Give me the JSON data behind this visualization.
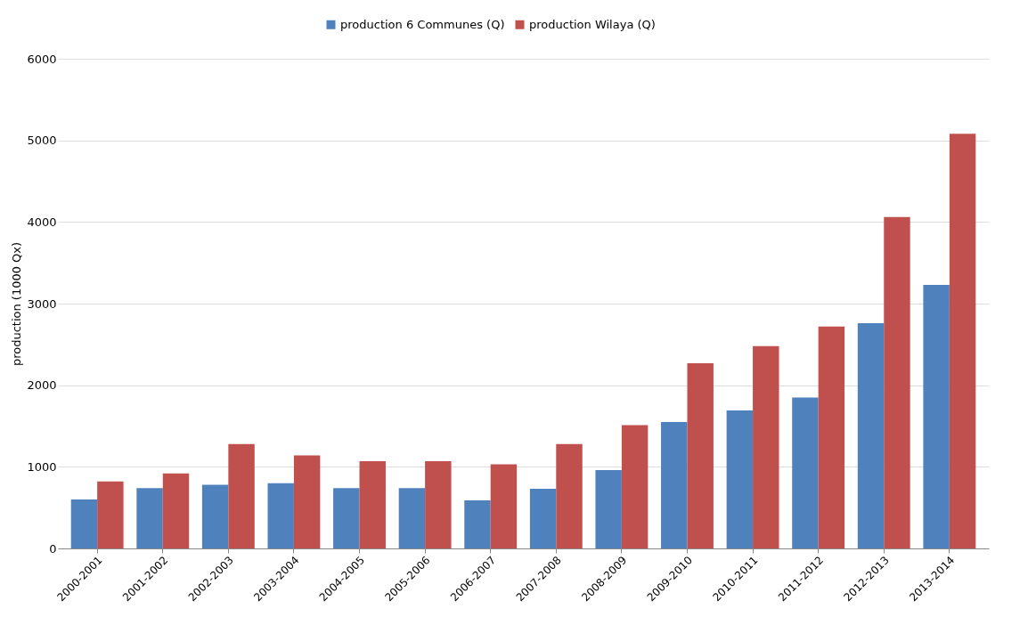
{
  "chart_data": {
    "type": "bar",
    "ylabel": "production (1000 Qx)",
    "categories": [
      "2000-2001",
      "2001-2002",
      "2002-2003",
      "2003-2004",
      "2004-2005",
      "2005-2006",
      "2006-2007",
      "2007-2008",
      "2008-2009",
      "2009-2010",
      "2010-2011",
      "2011-2012",
      "2012-2013",
      "2013-2014"
    ],
    "series": [
      {
        "name": "production 6 Communes (Q)",
        "color": "#4f81bd",
        "values": [
          600,
          740,
          780,
          800,
          740,
          740,
          590,
          730,
          960,
          1550,
          1690,
          1850,
          2760,
          3230
        ]
      },
      {
        "name": "production Wilaya (Q)",
        "color": "#c0504d",
        "values": [
          820,
          920,
          1280,
          1140,
          1070,
          1070,
          1030,
          1280,
          1510,
          2270,
          2480,
          2720,
          4060,
          5080
        ]
      }
    ],
    "ylim": [
      0,
      6000
    ],
    "yticks": [
      0,
      1000,
      2000,
      3000,
      4000,
      5000,
      6000
    ],
    "grid": "y",
    "legend": "top"
  }
}
